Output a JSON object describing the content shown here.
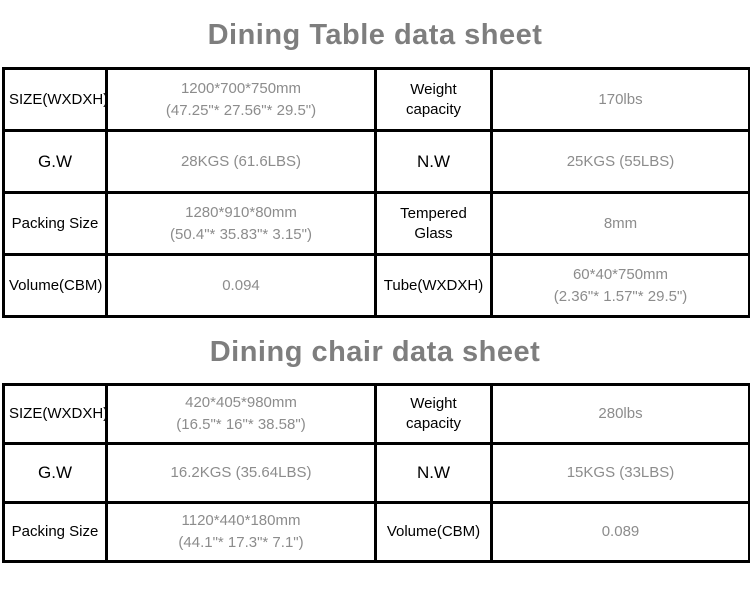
{
  "page": {
    "background_color": "#ffffff",
    "border_color": "#000000",
    "title_color": "#7e7e7e",
    "label_color": "#000000",
    "value_color": "#8c8c8c"
  },
  "tables": [
    {
      "title": "Dining Table data sheet",
      "rows": [
        [
          [
            "SIZE(WXDXH)"
          ],
          [
            "1200*700*750mm",
            "(47.25\"* 27.56\"* 29.5\")"
          ],
          [
            "Weight capacity"
          ],
          [
            "170lbs"
          ]
        ],
        [
          [
            "G.W"
          ],
          [
            "28KGS (61.6LBS)"
          ],
          [
            "N.W"
          ],
          [
            "25KGS (55LBS)"
          ]
        ],
        [
          [
            "Packing Size"
          ],
          [
            "1280*910*80mm",
            "(50.4\"* 35.83\"* 3.15\")"
          ],
          [
            "Tempered Glass"
          ],
          [
            "8mm"
          ]
        ],
        [
          [
            "Volume(CBM)"
          ],
          [
            "0.094"
          ],
          [
            "Tube(WXDXH)"
          ],
          [
            "60*40*750mm",
            "(2.36\"* 1.57\"* 29.5\")"
          ]
        ]
      ]
    },
    {
      "title": "Dining chair data sheet",
      "rows": [
        [
          [
            "SIZE(WXDXH)"
          ],
          [
            "420*405*980mm",
            "(16.5\"* 16\"* 38.58\")"
          ],
          [
            "Weight capacity"
          ],
          [
            "280lbs"
          ]
        ],
        [
          [
            "G.W"
          ],
          [
            "16.2KGS (35.64LBS)"
          ],
          [
            "N.W"
          ],
          [
            "15KGS (33LBS)"
          ]
        ],
        [
          [
            "Packing Size"
          ],
          [
            "1120*440*180mm",
            "(44.1\"* 17.3\"* 7.1\")"
          ],
          [
            "Volume(CBM)"
          ],
          [
            "0.089"
          ]
        ]
      ]
    }
  ]
}
